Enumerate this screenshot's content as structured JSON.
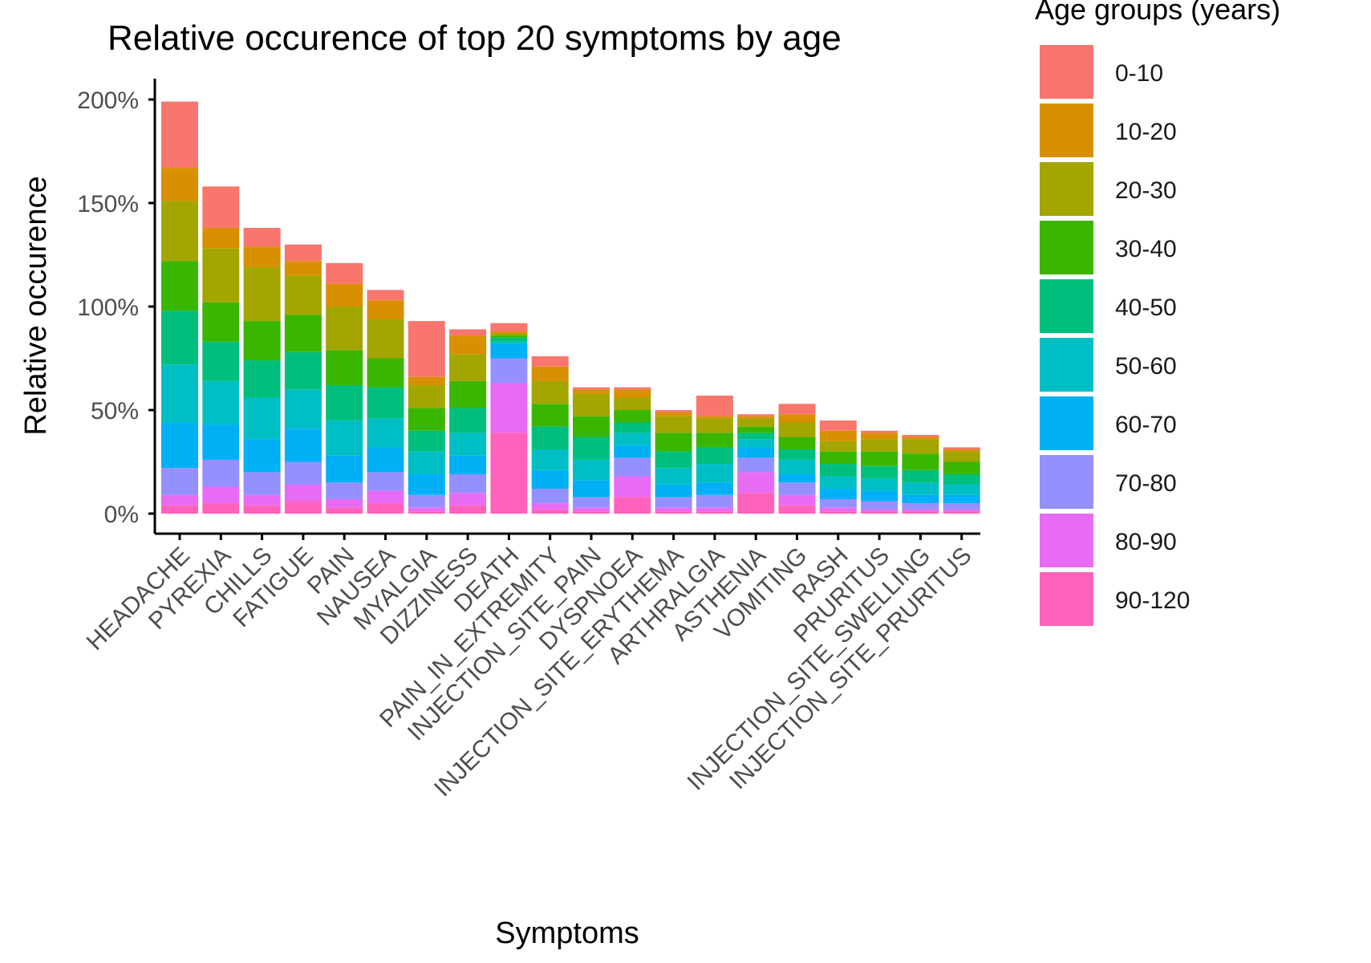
{
  "chart_data": {
    "type": "bar",
    "stacked": true,
    "title": "Relative occurence of top 20 symptoms by age",
    "xlabel": "Symptoms",
    "ylabel": "Relative occurence",
    "ylim": [
      0,
      200
    ],
    "y_ticks": [
      "0%",
      "50%",
      "100%",
      "150%",
      "200%"
    ],
    "y_tick_values": [
      0,
      50,
      100,
      150,
      200
    ],
    "grid": false,
    "legend": {
      "title": "Age groups (years)",
      "placement": "right"
    },
    "categories": [
      "HEADACHE",
      "PYREXIA",
      "CHILLS",
      "FATIGUE",
      "PAIN",
      "NAUSEA",
      "MYALGIA",
      "DIZZINESS",
      "DEATH",
      "PAIN_IN_EXTREMITY",
      "INJECTION_SITE_PAIN",
      "DYSPNOEA",
      "INJECTION_SITE_ERYTHEMA",
      "ARTHRALGIA",
      "ASTHENIA",
      "VOMITING",
      "RASH",
      "PRURITUS",
      "INJECTION_SITE_SWELLING",
      "INJECTION_SITE_PRURITUS"
    ],
    "series": [
      {
        "name": "0-10",
        "color": "#F8766D",
        "values": [
          32,
          20,
          9,
          8,
          10,
          5,
          27,
          3,
          4,
          5,
          1,
          1,
          1,
          10,
          1,
          5,
          5,
          1,
          1,
          1
        ]
      },
      {
        "name": "10-20",
        "color": "#D89000",
        "values": [
          16,
          10,
          10,
          7,
          11,
          9,
          4,
          9,
          1,
          7,
          2,
          4,
          2,
          1,
          1,
          4,
          5,
          3,
          1,
          1
        ]
      },
      {
        "name": "20-30",
        "color": "#A3A500",
        "values": [
          29,
          26,
          26,
          19,
          21,
          19,
          11,
          13,
          1,
          11,
          11,
          6,
          8,
          7,
          4,
          7,
          5,
          6,
          7,
          5
        ]
      },
      {
        "name": "30-40",
        "color": "#39B600",
        "values": [
          24,
          19,
          19,
          18,
          17,
          14,
          11,
          13,
          1,
          11,
          10,
          6,
          9,
          7,
          3,
          6,
          6,
          7,
          8,
          6
        ]
      },
      {
        "name": "40-50",
        "color": "#00BF7D",
        "values": [
          26,
          19,
          18,
          18,
          17,
          15,
          10,
          12,
          2,
          11,
          11,
          5,
          8,
          8,
          3,
          5,
          6,
          6,
          6,
          5
        ]
      },
      {
        "name": "50-60",
        "color": "#00BFC4",
        "values": [
          28,
          21,
          20,
          19,
          17,
          14,
          11,
          11,
          1,
          10,
          10,
          6,
          8,
          9,
          4,
          7,
          6,
          6,
          6,
          5
        ]
      },
      {
        "name": "60-70",
        "color": "#00B0F6",
        "values": [
          22,
          17,
          16,
          16,
          13,
          12,
          10,
          9,
          7,
          9,
          8,
          6,
          6,
          6,
          5,
          4,
          5,
          5,
          4,
          4
        ]
      },
      {
        "name": "70-80",
        "color": "#9590FF",
        "values": [
          13,
          13,
          11,
          11,
          8,
          9,
          6,
          9,
          12,
          7,
          5,
          9,
          5,
          6,
          7,
          6,
          4,
          4,
          3,
          3
        ]
      },
      {
        "name": "80-90",
        "color": "#E76BF3",
        "values": [
          5,
          8,
          5,
          8,
          4,
          6,
          2,
          6,
          24,
          3,
          2,
          10,
          2,
          2,
          10,
          5,
          2,
          1,
          1,
          1
        ]
      },
      {
        "name": "90-120",
        "color": "#FF62BC",
        "values": [
          4,
          5,
          4,
          6,
          3,
          5,
          1,
          4,
          39,
          2,
          1,
          8,
          1,
          1,
          10,
          4,
          1,
          1,
          1,
          1
        ]
      }
    ]
  }
}
